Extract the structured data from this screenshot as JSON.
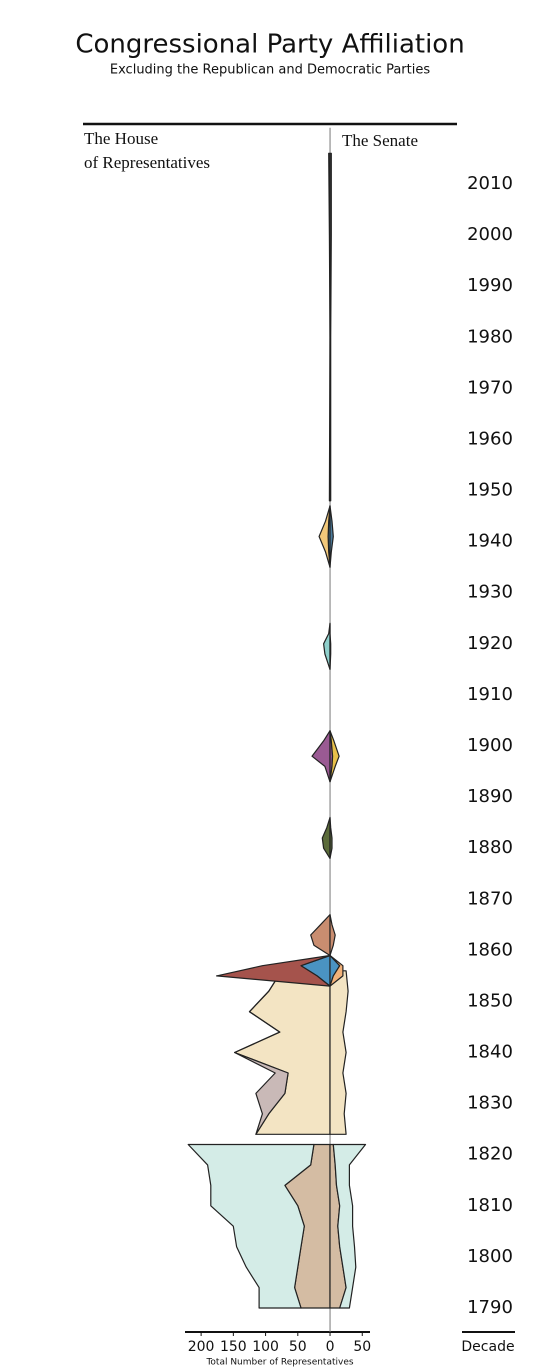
{
  "chart_data": {
    "type": "mirror-area",
    "title": "Congressional Party Affiliation",
    "subtitle": "Excluding the Republican and Democratic Parties",
    "house_label": [
      "The House",
      "of Representatives"
    ],
    "senate_label": "The Senate",
    "xlabel": "Total Number of Representatives",
    "ylabel": "Decade",
    "xlim": [
      -225,
      62
    ],
    "xticks": [
      {
        "value": -200,
        "label": "200"
      },
      {
        "value": -150,
        "label": "150"
      },
      {
        "value": -100,
        "label": "100"
      },
      {
        "value": -50,
        "label": "50"
      },
      0,
      50
    ],
    "ylim": [
      1785.3,
      2021
    ],
    "yticks": [
      1790,
      1800,
      1810,
      1820,
      1830,
      1840,
      1850,
      1860,
      1870,
      1880,
      1890,
      1900,
      1910,
      1920,
      1930,
      1940,
      1950,
      1960,
      1970,
      1980,
      1990,
      2000,
      2010
    ],
    "eras": [
      {
        "x": [
          1790,
          1794,
          1798,
          1802,
          1806,
          1810,
          1814,
          1818,
          1822
        ],
        "house": [
          {
            "color": "#d4bca3",
            "values": [
              45,
              55,
              50,
              45,
              40,
              50,
              70,
              30,
              25
            ]
          },
          {
            "color": "#d4ece7",
            "values": [
              65,
              55,
              80,
              100,
              110,
              135,
              115,
              160,
              195
            ]
          }
        ],
        "senate": [
          {
            "color": "#d4bca3",
            "values": [
              15,
              25,
              20,
              15,
              12,
              15,
              10,
              8,
              5
            ]
          },
          {
            "color": "#d4ece7",
            "values": [
              15,
              10,
              20,
              23,
              23,
              20,
              20,
              22,
              50
            ]
          }
        ]
      },
      {
        "x": [
          1824,
          1828,
          1832,
          1836,
          1840,
          1844,
          1848,
          1852,
          1856
        ],
        "house": [
          {
            "color": "#f3e4c3",
            "values": [
              115,
              95,
              70,
              65,
              148,
              78,
              125,
              95,
              75
            ]
          },
          {
            "color": "#c9b9b7",
            "values": [
              0,
              10,
              45,
              20,
              0,
              0,
              0,
              0,
              0
            ]
          }
        ],
        "senate": [
          {
            "color": "#f3e4c3",
            "values": [
              25,
              22,
              25,
              20,
              25,
              20,
              25,
              28,
              25
            ]
          }
        ]
      },
      {
        "x": [
          1853,
          1855,
          1857,
          1859
        ],
        "house": [
          {
            "color": "#4a93c2",
            "values": [
              0,
              20,
              45,
              0
            ]
          },
          {
            "color": "#a5534c",
            "values": [
              0,
              156,
              60,
              0
            ]
          }
        ],
        "senate": [
          {
            "color": "#4a93c2",
            "values": [
              0,
              5,
              15,
              0
            ]
          },
          {
            "color": "#f2b27a",
            "values": [
              0,
              15,
              5,
              0
            ]
          }
        ]
      },
      {
        "x": [
          1859,
          1861,
          1863,
          1865,
          1867
        ],
        "house": [
          {
            "color": "#c98d70",
            "values": [
              0,
              25,
              30,
              15,
              0
            ]
          }
        ],
        "senate": [
          {
            "color": "#c98d70",
            "values": [
              0,
              5,
              8,
              3,
              0
            ]
          }
        ]
      },
      {
        "x": [
          1878,
          1880,
          1882,
          1884,
          1886
        ],
        "house": [
          {
            "color": "#5b6b3a",
            "values": [
              0,
              10,
              12,
              5,
              0
            ]
          }
        ],
        "senate": [
          {
            "color": "#5b6b3a",
            "values": [
              0,
              3,
              3,
              1,
              0
            ]
          }
        ]
      },
      {
        "x": [
          1893,
          1896,
          1898,
          1901,
          1903
        ],
        "house": [
          {
            "color": "#9a5a93",
            "values": [
              0,
              8,
              28,
              10,
              0
            ]
          }
        ],
        "senate": [
          {
            "color": "#9a5a93",
            "values": [
              0,
              3,
              4,
              2,
              0
            ]
          },
          {
            "color": "#e8c04a",
            "values": [
              0,
              5,
              10,
              4,
              0
            ]
          }
        ]
      },
      {
        "x": [
          1915,
          1918,
          1920,
          1922,
          1924
        ],
        "house": [
          {
            "color": "#8fd0cc",
            "values": [
              0,
              8,
              10,
              2,
              0
            ]
          }
        ],
        "senate": [
          {
            "color": "#8fd0cc",
            "values": [
              0,
              1,
              1,
              0,
              0
            ]
          }
        ]
      },
      {
        "x": [
          1935,
          1938,
          1941,
          1944,
          1947
        ],
        "house": [
          {
            "color": "#4a93c2",
            "values": [
              0,
              2,
              3,
              2,
              0
            ]
          },
          {
            "color": "#f2c87a",
            "values": [
              0,
              5,
              14,
              5,
              0
            ]
          }
        ],
        "senate": [
          {
            "color": "#4a7a9a",
            "values": [
              0,
              2,
              5,
              3,
              0
            ]
          }
        ]
      },
      {
        "x": [
          1948,
          1980,
          2000,
          2016
        ],
        "house": [
          {
            "color": "#888888",
            "values": [
              1,
              0,
              1,
              2
            ]
          }
        ],
        "senate": [
          {
            "color": "#888888",
            "values": [
              1,
              1,
              2,
              2
            ]
          }
        ]
      }
    ]
  }
}
